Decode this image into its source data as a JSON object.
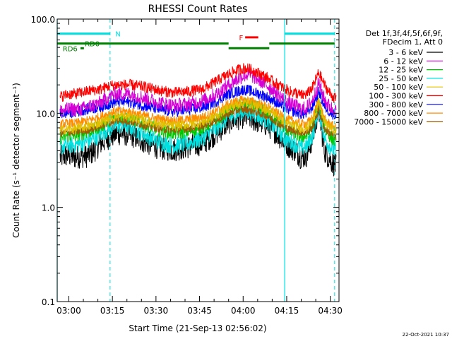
{
  "chart_data": {
    "type": "line",
    "title": "RHESSI Count Rates",
    "xlabel": "Start Time (21-Sep-13 02:56:02)",
    "ylabel": "Count Rate (s⁻¹ detector segment⁻¹)",
    "y_scale": "log",
    "ylim": [
      0.1,
      100.0
    ],
    "y_ticks": [
      "0.1",
      "1.0",
      "10.0",
      "100.0"
    ],
    "x_unit": "minutes since 02:56:02",
    "xlim": [
      0,
      97
    ],
    "x_ticks": [
      {
        "label": "03:00",
        "x": 4
      },
      {
        "label": "03:15",
        "x": 19
      },
      {
        "label": "03:30",
        "x": 34
      },
      {
        "label": "03:45",
        "x": 49
      },
      {
        "label": "04:00",
        "x": 64
      },
      {
        "label": "04:15",
        "x": 79
      },
      {
        "label": "04:30",
        "x": 94
      }
    ],
    "header": [
      "Det 1f,3f,4f,5f,6f,9f,",
      "FDecim 1, Att 0"
    ],
    "timestamp": "22-Oct-2021 10:37",
    "legend_position": "right",
    "series": [
      {
        "name": "3 - 6 keV",
        "color": "#000000",
        "base": 3.6,
        "noise": 0.3,
        "x": [
          1,
          4,
          6,
          8,
          10,
          12,
          15,
          18,
          20,
          22,
          25,
          30,
          35,
          40,
          45,
          50,
          55,
          58,
          60,
          62,
          64,
          66,
          68,
          70,
          72,
          75,
          78,
          80,
          82,
          84,
          86,
          88,
          90,
          92,
          94,
          96
        ],
        "y": [
          3.4,
          3.6,
          3.4,
          3.5,
          3.5,
          3.8,
          4.8,
          5.6,
          6.0,
          6.1,
          5.9,
          5.0,
          4.3,
          4.1,
          4.4,
          4.8,
          6.2,
          7.6,
          8.3,
          8.8,
          9.2,
          9.0,
          8.4,
          8.0,
          7.6,
          6.4,
          5.0,
          4.4,
          4.0,
          3.4,
          3.6,
          5.6,
          11.0,
          4.0,
          3.2,
          2.7
        ]
      },
      {
        "name": "6 - 12 keV",
        "color": "#d400d4",
        "base": 11.0,
        "noise": 0.18,
        "x": [
          1,
          4,
          6,
          8,
          10,
          12,
          15,
          18,
          20,
          22,
          25,
          30,
          35,
          40,
          45,
          50,
          55,
          58,
          60,
          62,
          64,
          66,
          68,
          70,
          72,
          75,
          78,
          80,
          82,
          84,
          86,
          88,
          90,
          92,
          94,
          96
        ],
        "y": [
          10.5,
          11.0,
          11.0,
          11.0,
          11.5,
          12.0,
          13.0,
          15.0,
          16.0,
          16.0,
          16.0,
          14.5,
          13.0,
          12.0,
          12.5,
          13.5,
          16.0,
          19.0,
          21.0,
          23.0,
          25.0,
          26.0,
          24.0,
          22.0,
          20.0,
          17.0,
          14.0,
          12.5,
          12.0,
          11.0,
          11.5,
          14.0,
          21.0,
          14.0,
          11.5,
          10.5
        ]
      },
      {
        "name": "12 - 25 keV",
        "color": "#00c800",
        "base": 7.5,
        "noise": 0.17,
        "x": [
          1,
          4,
          6,
          8,
          10,
          12,
          15,
          18,
          20,
          22,
          25,
          30,
          35,
          40,
          45,
          50,
          55,
          58,
          60,
          62,
          64,
          66,
          68,
          70,
          72,
          75,
          78,
          80,
          82,
          84,
          86,
          88,
          90,
          92,
          94,
          96
        ],
        "y": [
          5.5,
          5.8,
          5.8,
          6.0,
          6.3,
          6.6,
          7.3,
          8.4,
          9.0,
          9.1,
          8.8,
          7.6,
          6.7,
          6.1,
          6.4,
          7.0,
          8.6,
          10.2,
          11.0,
          11.8,
          12.4,
          12.5,
          11.8,
          11.0,
          10.2,
          8.8,
          7.2,
          6.4,
          6.1,
          5.6,
          5.8,
          7.6,
          13.5,
          7.0,
          5.6,
          5.0
        ]
      },
      {
        "name": "25 - 50 keV",
        "color": "#00e0e0",
        "base": 5.0,
        "noise": 0.22,
        "x": [
          1,
          4,
          6,
          8,
          10,
          12,
          15,
          18,
          20,
          22,
          25,
          30,
          35,
          40,
          45,
          50,
          55,
          58,
          60,
          62,
          64,
          66,
          68,
          70,
          72,
          75,
          78,
          80,
          82,
          84,
          86,
          88,
          90,
          92,
          94,
          96
        ],
        "y": [
          4.4,
          4.6,
          4.6,
          4.8,
          5.0,
          5.3,
          6.0,
          7.0,
          7.4,
          7.5,
          7.2,
          6.0,
          5.0,
          4.5,
          4.8,
          5.4,
          7.0,
          8.5,
          9.2,
          10.0,
          10.5,
          10.5,
          9.8,
          9.2,
          8.5,
          7.0,
          5.6,
          5.0,
          4.7,
          4.3,
          4.5,
          6.0,
          11.5,
          5.4,
          4.4,
          4.0
        ]
      },
      {
        "name": "50 - 100 keV",
        "color": "#e0c000",
        "base": 7.0,
        "noise": 0.12,
        "x": [
          1,
          4,
          6,
          8,
          10,
          12,
          15,
          18,
          20,
          22,
          25,
          30,
          35,
          40,
          45,
          50,
          55,
          58,
          60,
          62,
          64,
          66,
          68,
          70,
          72,
          75,
          78,
          80,
          82,
          84,
          86,
          88,
          90,
          92,
          94,
          96
        ],
        "y": [
          6.6,
          6.8,
          6.8,
          7.0,
          7.2,
          7.4,
          8.0,
          8.8,
          9.2,
          9.3,
          9.1,
          8.4,
          7.7,
          7.3,
          7.6,
          8.0,
          9.5,
          11.0,
          11.8,
          12.4,
          12.8,
          12.7,
          12.1,
          11.5,
          11.0,
          9.7,
          8.2,
          7.6,
          7.3,
          6.9,
          7.0,
          8.4,
          13.0,
          8.0,
          7.0,
          6.5
        ]
      },
      {
        "name": "100 - 300 keV",
        "color": "#ff0000",
        "base": 15.0,
        "noise": 0.14,
        "x": [
          1,
          4,
          6,
          8,
          10,
          12,
          15,
          18,
          20,
          22,
          25,
          30,
          35,
          40,
          45,
          50,
          55,
          58,
          60,
          62,
          64,
          66,
          68,
          70,
          72,
          75,
          78,
          80,
          82,
          84,
          86,
          88,
          90,
          92,
          94,
          96
        ],
        "y": [
          15.0,
          16.0,
          16.0,
          16.5,
          17.0,
          17.5,
          18.0,
          19.5,
          20.0,
          20.0,
          20.0,
          19.0,
          17.5,
          16.5,
          17.0,
          18.0,
          22.0,
          25.0,
          27.0,
          28.5,
          30.0,
          29.5,
          28.0,
          26.0,
          24.0,
          21.0,
          18.5,
          17.0,
          16.5,
          15.5,
          16.0,
          19.0,
          27.0,
          20.0,
          16.0,
          14.0
        ]
      },
      {
        "name": "300 - 800 keV",
        "color": "#0000ff",
        "base": 10.0,
        "noise": 0.14,
        "x": [
          1,
          4,
          6,
          8,
          10,
          12,
          15,
          18,
          20,
          22,
          25,
          30,
          35,
          40,
          45,
          50,
          55,
          58,
          60,
          62,
          64,
          66,
          68,
          70,
          72,
          75,
          78,
          80,
          82,
          84,
          86,
          88,
          90,
          92,
          94,
          96
        ],
        "y": [
          9.8,
          10.2,
          10.2,
          10.6,
          11.0,
          11.3,
          11.7,
          12.6,
          13.2,
          13.3,
          13.1,
          12.0,
          11.0,
          10.4,
          10.8,
          11.5,
          13.5,
          15.5,
          16.5,
          17.0,
          17.8,
          17.5,
          16.6,
          15.8,
          15.0,
          13.3,
          11.6,
          10.8,
          10.4,
          9.8,
          10.0,
          12.0,
          17.0,
          11.8,
          10.2,
          9.5
        ]
      },
      {
        "name": "800 - 7000 keV",
        "color": "#ff8c00",
        "base": 8.0,
        "noise": 0.12,
        "x": [
          1,
          4,
          6,
          8,
          10,
          12,
          15,
          18,
          20,
          22,
          25,
          30,
          35,
          40,
          45,
          50,
          55,
          58,
          60,
          62,
          64,
          66,
          68,
          70,
          72,
          75,
          78,
          80,
          82,
          84,
          86,
          88,
          90,
          92,
          94,
          96
        ],
        "y": [
          7.6,
          7.8,
          7.8,
          8.0,
          8.3,
          8.6,
          9.2,
          10.0,
          10.4,
          10.5,
          10.3,
          9.4,
          8.7,
          8.3,
          8.6,
          9.1,
          10.6,
          12.0,
          12.8,
          13.4,
          13.8,
          13.6,
          13.0,
          12.4,
          11.8,
          10.4,
          9.0,
          8.4,
          8.1,
          7.7,
          7.8,
          9.0,
          14.0,
          8.5,
          7.6,
          7.0
        ]
      },
      {
        "name": "7000 - 15000 keV",
        "color": "#a05a00",
        "base": 6.5,
        "noise": 0.1,
        "x": [
          1,
          4,
          6,
          8,
          10,
          12,
          15,
          18,
          20,
          22,
          25,
          30,
          35,
          40,
          45,
          50,
          55,
          58,
          60,
          62,
          64,
          66,
          68,
          70,
          72,
          75,
          78,
          80,
          82,
          84,
          86,
          88,
          90,
          92,
          94,
          96
        ],
        "y": [
          6.1,
          6.3,
          6.3,
          6.4,
          6.6,
          6.8,
          7.3,
          8.0,
          8.3,
          8.4,
          8.2,
          7.5,
          6.9,
          6.6,
          6.9,
          7.3,
          8.5,
          9.6,
          10.2,
          10.7,
          11.0,
          10.9,
          10.4,
          9.9,
          9.4,
          8.3,
          7.2,
          6.7,
          6.5,
          6.2,
          6.3,
          7.2,
          11.0,
          6.8,
          6.1,
          5.6
        ]
      }
    ],
    "annotations": {
      "vlines_solid": [
        {
          "x": 0,
          "color": "#00e0e0"
        },
        {
          "x": 78.3,
          "color": "#00e0e0"
        }
      ],
      "vlines_dashed": [
        {
          "x": 18.2,
          "color": "#00e0e0"
        },
        {
          "x": 95.5,
          "color": "#00e0e0"
        }
      ],
      "flag_bars": [
        {
          "label": "N",
          "color": "#00e0e0",
          "segments": [
            [
              0,
              18.2
            ],
            [
              78.3,
              95.5
            ]
          ],
          "y": 70.0,
          "label_x": 20.0,
          "label_anchor": "start"
        },
        {
          "label": "F",
          "color": "#ff0000",
          "segments": [
            [
              64.7,
              69.2
            ]
          ],
          "y": 64.0,
          "label_x": 64.0,
          "label_anchor": "end"
        },
        {
          "label": "RD0",
          "color": "#008000",
          "segments": [
            [
              0,
              59.0
            ],
            [
              73.0,
              95.5
            ]
          ],
          "y": 55.0,
          "label_x": 9.5,
          "label_anchor": "start"
        },
        {
          "label": "RD6",
          "color": "#008000",
          "segments": [
            [
              8.0,
              9.2
            ],
            [
              59.0,
              73.0
            ]
          ],
          "y": 49.0,
          "label_x": 7.0,
          "label_anchor": "end"
        }
      ]
    }
  }
}
